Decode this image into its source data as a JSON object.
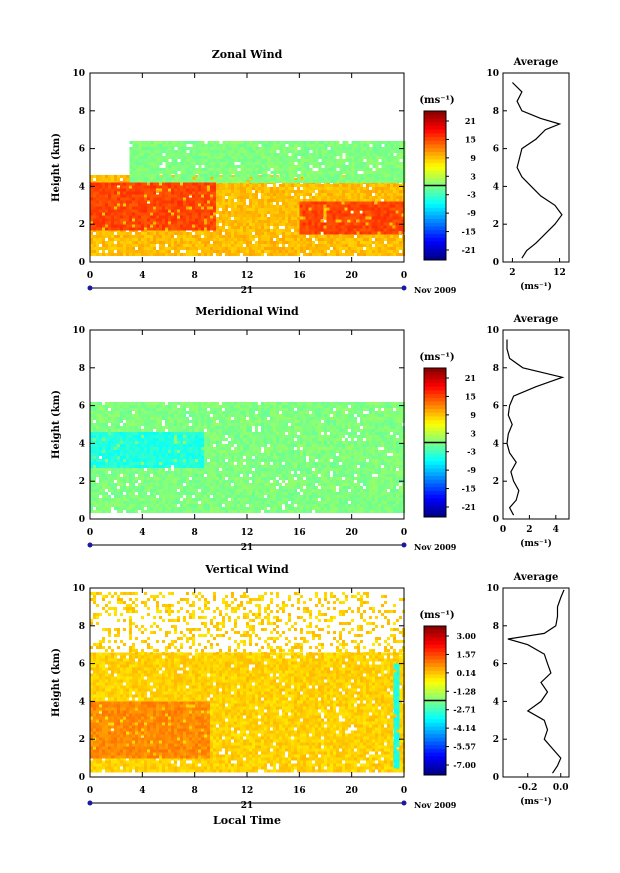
{
  "figure": {
    "date_label": "Nov 2009",
    "xlabel": "Local Time",
    "day_label": "21"
  },
  "chart_data": [
    {
      "type": "heatmap",
      "title": "Zonal Wind",
      "ylabel": "Height (km)",
      "xlim": [
        0,
        24
      ],
      "ylim": [
        0,
        10
      ],
      "xticks": [
        "0",
        "4",
        "8",
        "12",
        "16",
        "20",
        "0"
      ],
      "yticks": [
        "0",
        "2",
        "4",
        "6",
        "8",
        "10"
      ],
      "colorbar": {
        "unit": "(ms⁻¹)",
        "labels": [
          "21",
          "15",
          "9",
          "3",
          "-3",
          "-9",
          "-15",
          "-21"
        ],
        "range": [
          -21,
          21
        ]
      },
      "layers": [
        {
          "t0": 0.0,
          "t1": 24.0,
          "h0": 0.4,
          "h1": 4.6,
          "v": 8
        },
        {
          "t0": 3.0,
          "t1": 24.0,
          "h0": 4.2,
          "h1": 6.4,
          "v": 0
        },
        {
          "t0": 0.0,
          "t1": 9.5,
          "h0": 1.8,
          "h1": 4.2,
          "v": 13
        },
        {
          "t0": 16.0,
          "t1": 24.0,
          "h0": 1.6,
          "h1": 3.2,
          "v": 13
        }
      ],
      "average": {
        "title": "Average",
        "xticks": [
          "2",
          "12"
        ],
        "xlim": [
          0,
          14
        ],
        "unit": "(ms⁻¹)",
        "profile_h": [
          0.2,
          0.6,
          1.0,
          1.5,
          2.0,
          2.5,
          3.0,
          3.5,
          4.0,
          4.5,
          5.0,
          5.5,
          6.0,
          6.5,
          7.0,
          7.3,
          7.6,
          8.0,
          8.5,
          9.0,
          9.5
        ],
        "profile_v": [
          4,
          5,
          7,
          9,
          11,
          12.5,
          11,
          8,
          6,
          4,
          3,
          3.5,
          4,
          7,
          9,
          12,
          8,
          4,
          3,
          4,
          2
        ]
      }
    },
    {
      "type": "heatmap",
      "title": "Meridional Wind",
      "ylabel": "Height (km)",
      "xlim": [
        0,
        24
      ],
      "ylim": [
        0,
        10
      ],
      "xticks": [
        "0",
        "4",
        "8",
        "12",
        "16",
        "20",
        "0"
      ],
      "yticks": [
        "0",
        "2",
        "4",
        "6",
        "8",
        "10"
      ],
      "colorbar": {
        "unit": "(ms⁻¹)",
        "labels": [
          "21",
          "15",
          "9",
          "3",
          "-3",
          "-9",
          "-15",
          "-21"
        ],
        "range": [
          -21,
          21
        ]
      },
      "layers": [
        {
          "t0": 0.0,
          "t1": 24.0,
          "h0": 0.4,
          "h1": 6.2,
          "v": 0
        },
        {
          "t0": 0.0,
          "t1": 8.5,
          "h0": 2.8,
          "h1": 4.6,
          "v": -4
        }
      ],
      "average": {
        "title": "Average",
        "xticks": [
          "0",
          "2",
          "4"
        ],
        "xlim": [
          0,
          5
        ],
        "unit": "(ms⁻¹)",
        "profile_h": [
          0.2,
          0.6,
          1.0,
          1.5,
          2.0,
          2.5,
          3.0,
          3.5,
          4.0,
          4.5,
          5.0,
          5.5,
          6.0,
          6.5,
          7.0,
          7.5,
          8.0,
          8.5,
          9.0,
          9.5
        ],
        "profile_v": [
          0.8,
          0.5,
          1.0,
          1.2,
          0.8,
          0.6,
          1.0,
          0.5,
          0.3,
          0.4,
          0.7,
          0.4,
          0.5,
          0.8,
          2.5,
          4.5,
          1.5,
          0.5,
          0.3,
          0.3
        ]
      }
    },
    {
      "type": "heatmap",
      "title": "Vertical Wind",
      "ylabel": "Height (km)",
      "xlabel": "Local Time",
      "xlim": [
        0,
        24
      ],
      "ylim": [
        0,
        10
      ],
      "xticks": [
        "0",
        "4",
        "8",
        "12",
        "16",
        "20",
        "0"
      ],
      "yticks": [
        "0",
        "2",
        "4",
        "6",
        "8",
        "10"
      ],
      "colorbar": {
        "unit": "(ms⁻¹)",
        "labels": [
          "3.00",
          "1.57",
          "0.14",
          "-1.28",
          "-2.71",
          "-4.14",
          "-5.57",
          "-7.00"
        ],
        "range": [
          -7,
          3
        ]
      },
      "layers": [
        {
          "t0": 0.0,
          "t1": 24.0,
          "h0": 0.3,
          "h1": 6.6,
          "v": -0.3
        },
        {
          "t0": 0.0,
          "t1": 24.0,
          "h0": 6.6,
          "h1": 9.8,
          "v": -0.3,
          "sparse": true
        },
        {
          "t0": 0.0,
          "t1": 9.0,
          "h0": 1.0,
          "h1": 4.0,
          "v": 0.4
        },
        {
          "t0": 23.2,
          "t1": 23.6,
          "h0": 0.5,
          "h1": 6.0,
          "v": -3.0
        }
      ],
      "average": {
        "title": "Average",
        "xticks": [
          "-0.2",
          "0.0"
        ],
        "xlim": [
          -0.35,
          0.05
        ],
        "unit": "(ms⁻¹)",
        "profile_h": [
          0.2,
          0.6,
          1.0,
          1.5,
          2.0,
          2.5,
          3.0,
          3.5,
          4.0,
          4.5,
          5.0,
          5.5,
          6.0,
          6.5,
          7.0,
          7.3,
          7.6,
          8.0,
          8.5,
          9.0,
          9.5,
          9.9
        ],
        "profile_v": [
          -0.05,
          -0.02,
          0.0,
          -0.05,
          -0.1,
          -0.08,
          -0.1,
          -0.2,
          -0.12,
          -0.08,
          -0.12,
          -0.06,
          -0.08,
          -0.1,
          -0.2,
          -0.32,
          -0.1,
          -0.03,
          -0.02,
          -0.02,
          0.0,
          0.02
        ]
      }
    }
  ]
}
